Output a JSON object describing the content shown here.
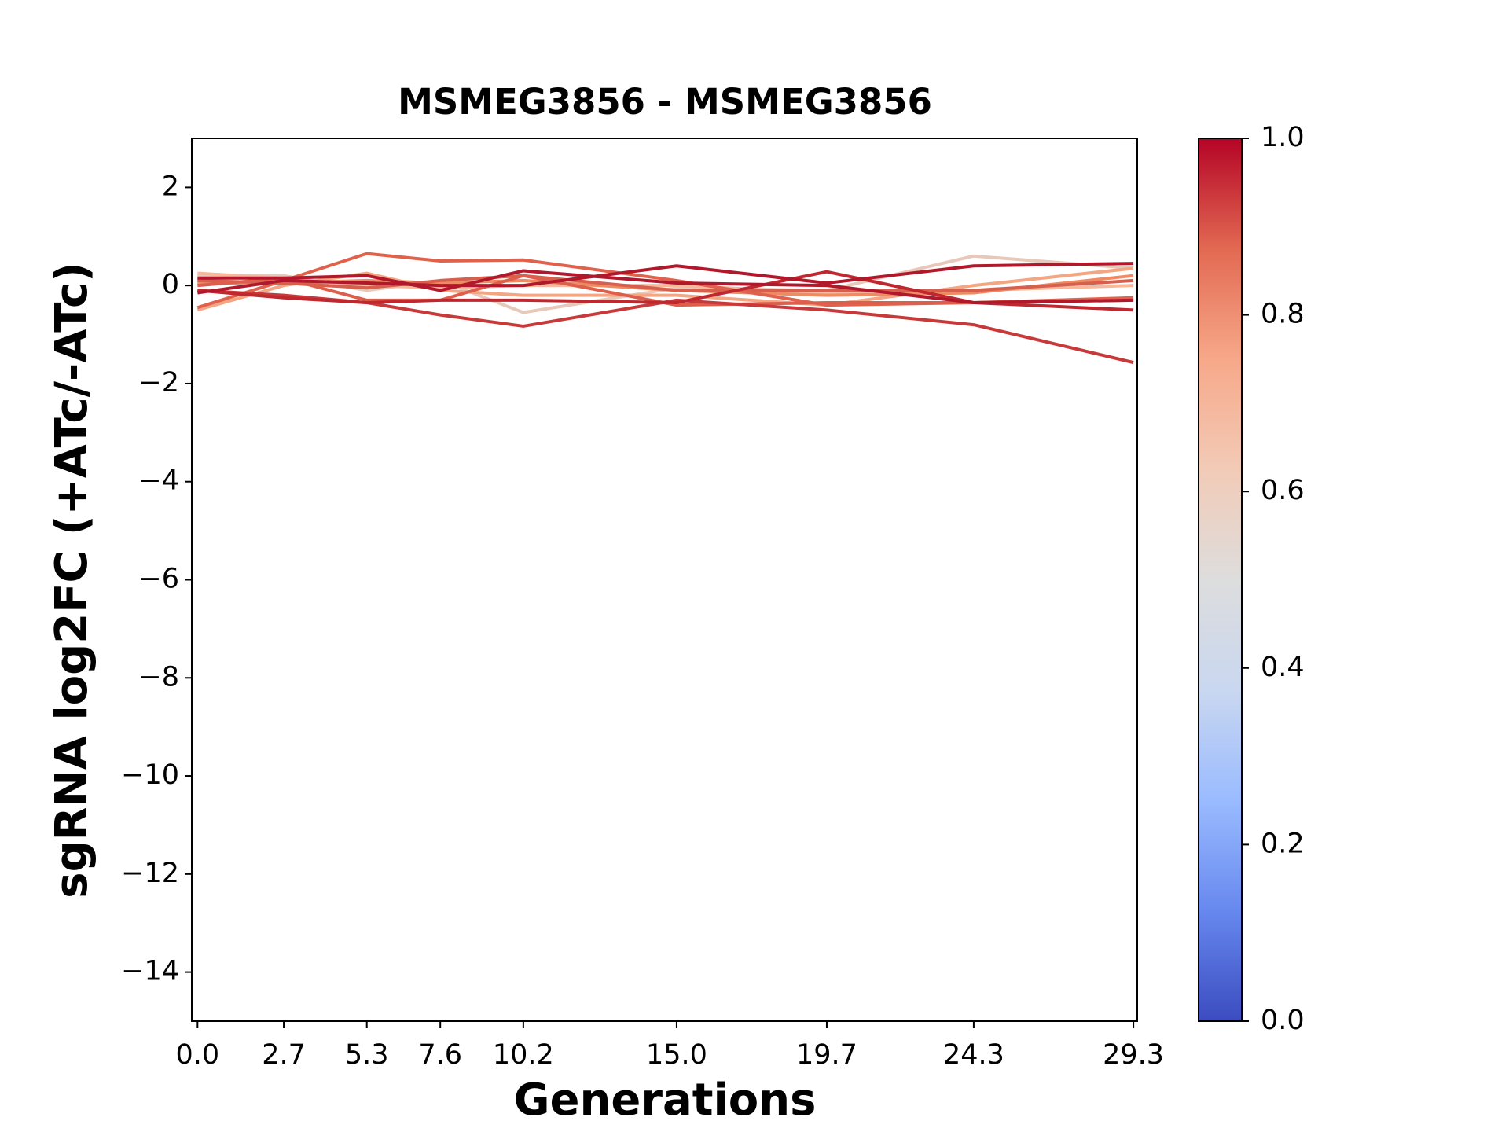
{
  "chart_data": {
    "type": "line",
    "title": "MSMEG3856 - MSMEG3856",
    "x_label": "Generations",
    "y_label": "sgRNA log2FC (+ATc/-ATc)",
    "x": [
      0,
      2.7,
      5.3,
      7.6,
      10.2,
      15,
      19.7,
      24.3,
      29.3
    ],
    "xlim": [
      -0.18,
      29.42
    ],
    "xticks": [
      {
        "value": 0,
        "label": "0.0"
      },
      2.7,
      5.3,
      7.6,
      10.2,
      {
        "value": 15,
        "label": "15.0"
      },
      19.7,
      24.3,
      29.3
    ],
    "ylim": [
      -15,
      3
    ],
    "yticks": [
      {
        "value": -14,
        "label": "−14"
      },
      {
        "value": -12,
        "label": "−12"
      },
      {
        "value": -10,
        "label": "−10"
      },
      {
        "value": -8,
        "label": "−8"
      },
      {
        "value": -6,
        "label": "−6"
      },
      {
        "value": -4,
        "label": "−4"
      },
      {
        "value": -2,
        "label": "−2"
      },
      0,
      2
    ],
    "series": [
      {
        "color": "#e8c8b8",
        "values": [
          0.2,
          0.2,
          -0.1,
          0.1,
          -0.55,
          -0.05,
          -0.1,
          0.6,
          0.35
        ]
      },
      {
        "color": "#f7b89c",
        "values": [
          0.25,
          0.15,
          0.0,
          -0.05,
          0.0,
          0.0,
          -0.15,
          -0.1,
          0.0
        ]
      },
      {
        "color": "#f4a582",
        "values": [
          -0.5,
          0.0,
          0.25,
          -0.1,
          -0.2,
          -0.2,
          -0.4,
          0.0,
          0.35
        ]
      },
      {
        "color": "#ef8a62",
        "values": [
          0.05,
          0.05,
          0.1,
          0.05,
          0.1,
          -0.1,
          -0.2,
          -0.15,
          0.2
        ]
      },
      {
        "color": "#d6604d",
        "values": [
          0.1,
          0.05,
          -0.05,
          0.1,
          0.2,
          -0.1,
          -0.1,
          -0.1,
          0.1
        ]
      },
      {
        "color": "#e0624c",
        "values": [
          -0.45,
          0.1,
          0.65,
          0.5,
          0.52,
          0.1,
          -0.4,
          -0.35,
          -0.25
        ]
      },
      {
        "color": "#dd5f4b",
        "values": [
          0.0,
          0.15,
          -0.3,
          -0.3,
          0.2,
          -0.4,
          -0.35,
          -0.35,
          -0.3
        ]
      },
      {
        "color": "#c83a3a",
        "values": [
          -0.1,
          -0.2,
          -0.35,
          -0.6,
          -0.83,
          -0.3,
          -0.5,
          -0.8,
          -1.57
        ]
      },
      {
        "color": "#c0282f",
        "values": [
          -0.1,
          -0.25,
          -0.35,
          -0.3,
          -0.3,
          -0.35,
          0.28,
          -0.35,
          -0.5
        ]
      },
      {
        "color": "#b2182b",
        "values": [
          -0.15,
          0.1,
          0.05,
          0.0,
          0.0,
          0.4,
          0.05,
          0.4,
          0.45
        ]
      },
      {
        "color": "#b2182b",
        "values": [
          0.15,
          0.15,
          0.2,
          -0.1,
          0.3,
          0.05,
          0.0,
          -0.35,
          -0.3
        ]
      }
    ],
    "colorbar": {
      "lim": [
        0,
        1
      ],
      "ticks": [
        {
          "value": 0,
          "label": "0.0"
        },
        0.2,
        0.4,
        0.6,
        0.8,
        {
          "value": 1,
          "label": "1.0"
        }
      ],
      "colors": [
        "#3b4cc0",
        "#6788ee",
        "#9abbff",
        "#c9d7f0",
        "#dddddd",
        "#f2cbb7",
        "#f7a889",
        "#e26952",
        "#b40426"
      ]
    }
  }
}
